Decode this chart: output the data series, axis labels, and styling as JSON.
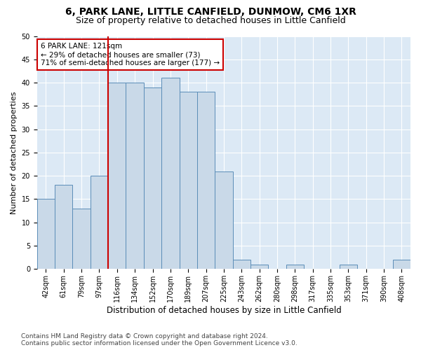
{
  "title": "6, PARK LANE, LITTLE CANFIELD, DUNMOW, CM6 1XR",
  "subtitle": "Size of property relative to detached houses in Little Canfield",
  "xlabel": "Distribution of detached houses by size in Little Canfield",
  "ylabel": "Number of detached properties",
  "categories": [
    "42sqm",
    "61sqm",
    "79sqm",
    "97sqm",
    "116sqm",
    "134sqm",
    "152sqm",
    "170sqm",
    "189sqm",
    "207sqm",
    "225sqm",
    "243sqm",
    "262sqm",
    "280sqm",
    "298sqm",
    "317sqm",
    "335sqm",
    "353sqm",
    "371sqm",
    "390sqm",
    "408sqm"
  ],
  "values": [
    15,
    18,
    13,
    20,
    40,
    40,
    39,
    41,
    38,
    38,
    21,
    2,
    1,
    0,
    1,
    0,
    0,
    1,
    0,
    0,
    2
  ],
  "bar_color": "#c9d9e8",
  "bar_edge_color": "#5b8db8",
  "vline_x": 3.5,
  "reference_line_label": "6 PARK LANE: 121sqm",
  "annotation_line1": "← 29% of detached houses are smaller (73)",
  "annotation_line2": "71% of semi-detached houses are larger (177) →",
  "annotation_box_color": "#ffffff",
  "annotation_box_edge_color": "#cc0000",
  "vline_color": "#cc0000",
  "ylim": [
    0,
    50
  ],
  "yticks": [
    0,
    5,
    10,
    15,
    20,
    25,
    30,
    35,
    40,
    45,
    50
  ],
  "footer_line1": "Contains HM Land Registry data © Crown copyright and database right 2024.",
  "footer_line2": "Contains public sector information licensed under the Open Government Licence v3.0.",
  "plot_bg_color": "#dce9f5",
  "title_fontsize": 10,
  "subtitle_fontsize": 9,
  "xlabel_fontsize": 8.5,
  "ylabel_fontsize": 8,
  "tick_fontsize": 7,
  "annotation_fontsize": 7.5,
  "footer_fontsize": 6.5
}
